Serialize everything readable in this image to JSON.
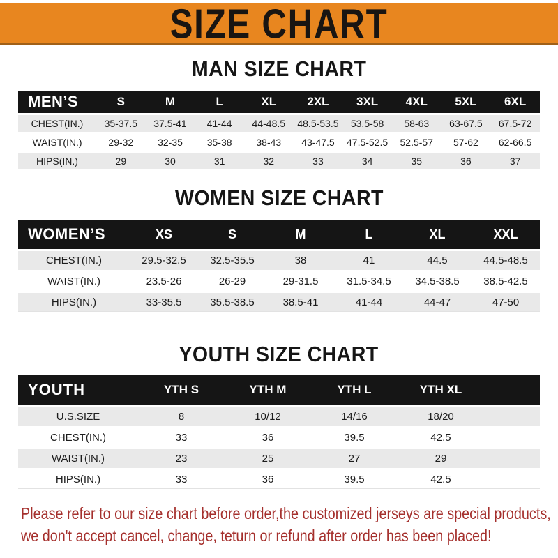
{
  "banner": {
    "title": "SIZE CHART"
  },
  "colors": {
    "banner_bg": "#E8861F",
    "banner_border": "#A06018",
    "header_bg": "#151515",
    "row_stripe": "#E9E9E9",
    "footer_text": "#A5302D"
  },
  "sections": [
    {
      "title": "MAN SIZE CHART",
      "header_label": "MEN’S",
      "columns": [
        "S",
        "M",
        "L",
        "XL",
        "2XL",
        "3XL",
        "4XL",
        "5XL",
        "6XL"
      ],
      "rows": [
        {
          "label": "CHEST(IN.)",
          "values": [
            "35-37.5",
            "37.5-41",
            "41-44",
            "44-48.5",
            "48.5-53.5",
            "53.5-58",
            "58-63",
            "63-67.5",
            "67.5-72"
          ]
        },
        {
          "label": "WAIST(IN.)",
          "values": [
            "29-32",
            "32-35",
            "35-38",
            "38-43",
            "43-47.5",
            "47.5-52.5",
            "52.5-57",
            "57-62",
            "62-66.5"
          ]
        },
        {
          "label": "HIPS(IN.)",
          "values": [
            "29",
            "30",
            "31",
            "32",
            "33",
            "34",
            "35",
            "36",
            "37"
          ]
        }
      ]
    },
    {
      "title": "WOMEN SIZE CHART",
      "header_label": "WOMEN’S",
      "columns": [
        "XS",
        "S",
        "M",
        "L",
        "XL",
        "XXL"
      ],
      "rows": [
        {
          "label": "CHEST(IN.)",
          "values": [
            "29.5-32.5",
            "32.5-35.5",
            "38",
            "41",
            "44.5",
            "44.5-48.5"
          ]
        },
        {
          "label": "WAIST(IN.)",
          "values": [
            "23.5-26",
            "26-29",
            "29-31.5",
            "31.5-34.5",
            "34.5-38.5",
            "38.5-42.5"
          ]
        },
        {
          "label": "HIPS(IN.)",
          "values": [
            "33-35.5",
            "35.5-38.5",
            "38.5-41",
            "41-44",
            "44-47",
            "47-50"
          ]
        }
      ]
    },
    {
      "title": "YOUTH SIZE CHART",
      "header_label": "YOUTH",
      "columns": [
        "YTH S",
        "YTH M",
        "YTH L",
        "YTH XL"
      ],
      "rows": [
        {
          "label": "U.S.SIZE",
          "values": [
            "8",
            "10/12",
            "14/16",
            "18/20"
          ]
        },
        {
          "label": "CHEST(IN.)",
          "values": [
            "33",
            "36",
            "39.5",
            "42.5"
          ]
        },
        {
          "label": "WAIST(IN.)",
          "values": [
            "23",
            "25",
            "27",
            "29"
          ]
        },
        {
          "label": "HIPS(IN.)",
          "values": [
            "33",
            "36",
            "39.5",
            "42.5"
          ]
        }
      ]
    }
  ],
  "footer": {
    "line1": "Please refer to our size chart before order,the customized jerseys are special products,",
    "line2": "we don't accept cancel, change, teturn or refund after order has been placed!"
  }
}
